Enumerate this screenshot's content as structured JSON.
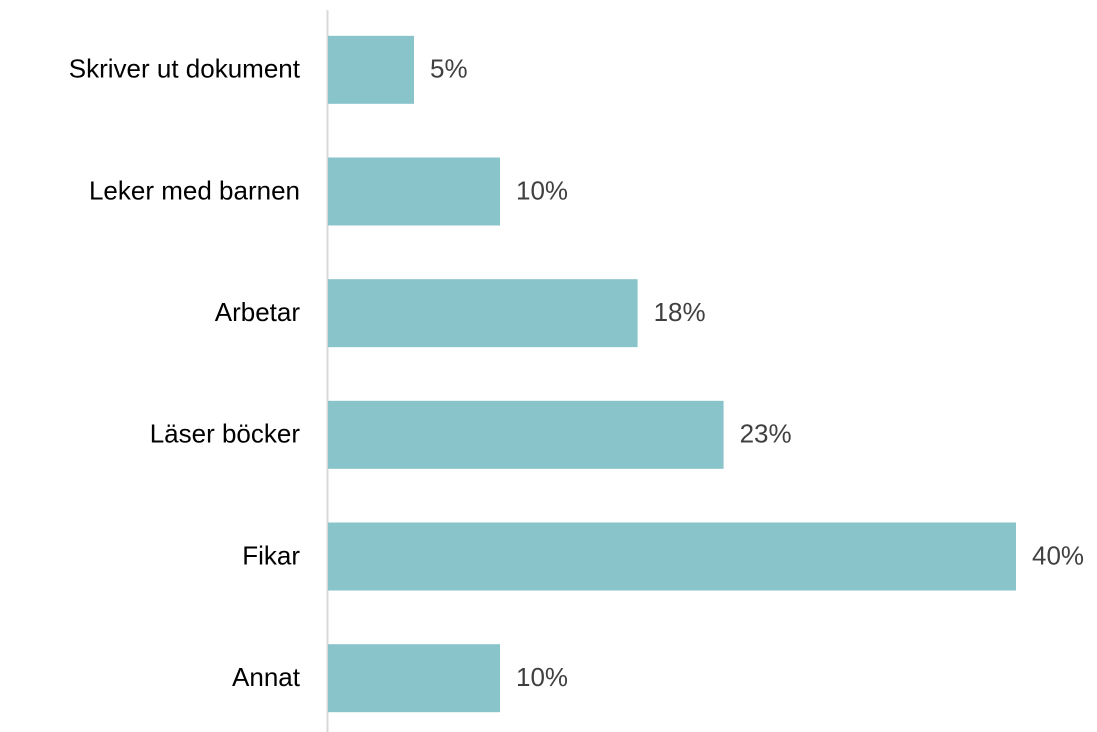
{
  "chart_data": {
    "type": "barh",
    "categories": [
      "Skriver ut dokument",
      "Leker med barnen",
      "Arbetar",
      "Läser böcker",
      "Fikar",
      "Annat"
    ],
    "values": [
      5,
      10,
      18,
      23,
      40,
      10
    ],
    "value_labels": [
      "5%",
      "10%",
      "18%",
      "23%",
      "40%",
      "10%"
    ],
    "color": "#89c4cb"
  }
}
